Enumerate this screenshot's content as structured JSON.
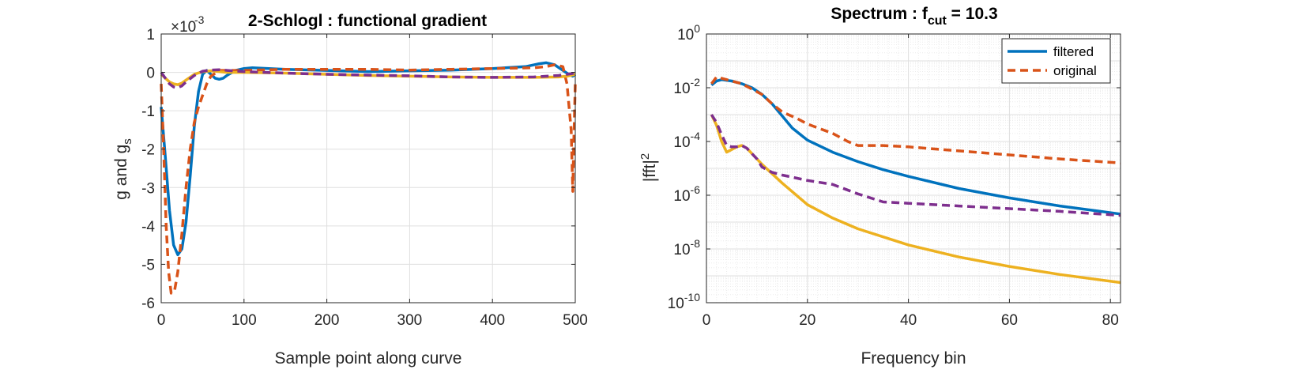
{
  "chart_data": [
    {
      "type": "line",
      "title": "2-Schlogl : functional gradient",
      "xlabel": "Sample point along curve",
      "ylabel": "g and g",
      "ylabel_subscript": "s",
      "exponent_label": "×10",
      "exponent_power": "-3",
      "xlim": [
        0,
        500
      ],
      "ylim": [
        -6,
        1
      ],
      "xticks": [
        0,
        100,
        200,
        300,
        400,
        500
      ],
      "yticks": [
        -6,
        -5,
        -4,
        -3,
        -2,
        -1,
        0,
        1
      ],
      "grid": true,
      "series": [
        {
          "color": "#0072BD",
          "dash": "solid",
          "x": [
            0,
            5,
            10,
            15,
            20,
            25,
            30,
            35,
            40,
            45,
            50,
            55,
            60,
            65,
            70,
            75,
            80,
            90,
            100,
            110,
            150,
            200,
            250,
            300,
            350,
            400,
            440,
            455,
            465,
            475,
            485,
            492,
            497,
            500
          ],
          "y": [
            -0.9,
            -2.2,
            -3.6,
            -4.5,
            -4.75,
            -4.6,
            -3.9,
            -2.7,
            -1.4,
            -0.5,
            -0.05,
            0.05,
            -0.05,
            -0.15,
            -0.18,
            -0.15,
            -0.07,
            0.05,
            0.1,
            0.12,
            0.08,
            0.05,
            0.02,
            0.04,
            0.06,
            0.1,
            0.15,
            0.22,
            0.25,
            0.2,
            0.05,
            -0.05,
            -0.1,
            -0.05
          ]
        },
        {
          "color": "#D95319",
          "dash": "dashed",
          "x": [
            0,
            3,
            6,
            9,
            12,
            16,
            20,
            25,
            30,
            35,
            40,
            45,
            50,
            55,
            60,
            70,
            80,
            100,
            150,
            200,
            250,
            300,
            350,
            400,
            450,
            465,
            475,
            485,
            490,
            495,
            497,
            498,
            500
          ],
          "y": [
            -0.3,
            -2.0,
            -4.0,
            -5.2,
            -5.75,
            -5.7,
            -5.2,
            -4.2,
            -3.0,
            -2.0,
            -1.3,
            -0.9,
            -0.6,
            -0.3,
            -0.1,
            0.05,
            0.05,
            0.05,
            0.08,
            0.08,
            0.08,
            0.06,
            0.08,
            0.1,
            0.12,
            0.15,
            0.2,
            0.15,
            -0.3,
            -1.5,
            -3.1,
            -2.0,
            -0.3
          ]
        },
        {
          "color": "#EDB120",
          "dash": "solid",
          "x": [
            0,
            5,
            10,
            15,
            20,
            25,
            30,
            40,
            50,
            60,
            70,
            80,
            100,
            150,
            200,
            250,
            300,
            350,
            400,
            450,
            480,
            490,
            500
          ],
          "y": [
            -0.05,
            -0.15,
            -0.25,
            -0.3,
            -0.32,
            -0.28,
            -0.2,
            -0.05,
            0.02,
            0.04,
            0.02,
            0.0,
            0.0,
            -0.02,
            -0.05,
            -0.08,
            -0.1,
            -0.12,
            -0.13,
            -0.13,
            -0.12,
            -0.1,
            -0.05
          ]
        },
        {
          "color": "#7E2F8E",
          "dash": "dashed",
          "x": [
            0,
            5,
            10,
            15,
            20,
            25,
            30,
            40,
            50,
            60,
            70,
            80,
            100,
            150,
            200,
            250,
            300,
            350,
            400,
            450,
            480,
            490,
            500
          ],
          "y": [
            0.0,
            -0.15,
            -0.3,
            -0.38,
            -0.4,
            -0.35,
            -0.25,
            -0.08,
            0.03,
            0.06,
            0.07,
            0.05,
            0.02,
            -0.02,
            -0.05,
            -0.07,
            -0.09,
            -0.12,
            -0.13,
            -0.12,
            -0.08,
            -0.05,
            -0.02
          ]
        }
      ]
    },
    {
      "type": "line",
      "title": "Spectrum : f",
      "title_subscript": "cut",
      "title_suffix": " = 10.3",
      "xlabel": "Frequency bin",
      "ylabel": "|fft|",
      "ylabel_superscript": "2",
      "log_y": true,
      "xlim": [
        0,
        82
      ],
      "ylim_exponent": [
        -10,
        0
      ],
      "xticks": [
        0,
        20,
        40,
        60,
        80
      ],
      "yticks_exponent": [
        -10,
        -8,
        -6,
        -4,
        -2,
        0
      ],
      "ytick_base": "10",
      "grid": true,
      "minor_grid": true,
      "legend": {
        "placement": "top-right",
        "entries": [
          {
            "label": "filtered",
            "color": "#0072BD",
            "dash": "solid"
          },
          {
            "label": "original",
            "color": "#D95319",
            "dash": "dashed"
          }
        ]
      },
      "series": [
        {
          "name": "filtered",
          "color": "#0072BD",
          "dash": "solid",
          "x": [
            1,
            2,
            3,
            5,
            7,
            9,
            11,
            13,
            15,
            17,
            20,
            25,
            30,
            35,
            40,
            50,
            60,
            70,
            82
          ],
          "log10y": [
            -1.9,
            -1.75,
            -1.7,
            -1.75,
            -1.85,
            -2.0,
            -2.25,
            -2.6,
            -3.05,
            -3.5,
            -3.95,
            -4.4,
            -4.75,
            -5.05,
            -5.3,
            -5.75,
            -6.1,
            -6.4,
            -6.7
          ]
        },
        {
          "name": "original",
          "color": "#D95319",
          "dash": "dashed",
          "x": [
            1,
            2,
            3,
            5,
            7,
            9,
            11,
            13,
            15,
            18,
            20,
            25,
            28,
            30,
            35,
            40,
            50,
            60,
            70,
            82
          ],
          "log10y": [
            -1.85,
            -1.6,
            -1.65,
            -1.75,
            -1.85,
            -2.05,
            -2.25,
            -2.6,
            -2.9,
            -3.15,
            -3.35,
            -3.7,
            -4.0,
            -4.15,
            -4.15,
            -4.2,
            -4.35,
            -4.5,
            -4.65,
            -4.8
          ]
        },
        {
          "color": "#EDB120",
          "dash": "solid",
          "x": [
            1,
            2,
            3,
            4,
            5,
            6,
            7,
            8,
            9,
            10,
            11,
            13,
            15,
            20,
            25,
            30,
            40,
            50,
            60,
            70,
            82
          ],
          "log10y": [
            -3.0,
            -3.4,
            -4.0,
            -4.4,
            -4.3,
            -4.2,
            -4.15,
            -4.25,
            -4.45,
            -4.65,
            -4.85,
            -5.2,
            -5.55,
            -6.35,
            -6.85,
            -7.25,
            -7.85,
            -8.3,
            -8.65,
            -8.95,
            -9.25
          ]
        },
        {
          "color": "#7E2F8E",
          "dash": "dashed",
          "x": [
            1,
            2,
            3,
            4,
            5,
            6,
            7,
            8,
            9,
            10,
            11,
            13,
            15,
            20,
            25,
            30,
            35,
            40,
            50,
            60,
            70,
            82
          ],
          "log10y": [
            -3.0,
            -3.3,
            -3.75,
            -4.15,
            -4.2,
            -4.2,
            -4.15,
            -4.25,
            -4.45,
            -4.65,
            -4.95,
            -5.15,
            -5.25,
            -5.45,
            -5.6,
            -5.95,
            -6.25,
            -6.3,
            -6.4,
            -6.5,
            -6.6,
            -6.75
          ]
        }
      ]
    }
  ]
}
